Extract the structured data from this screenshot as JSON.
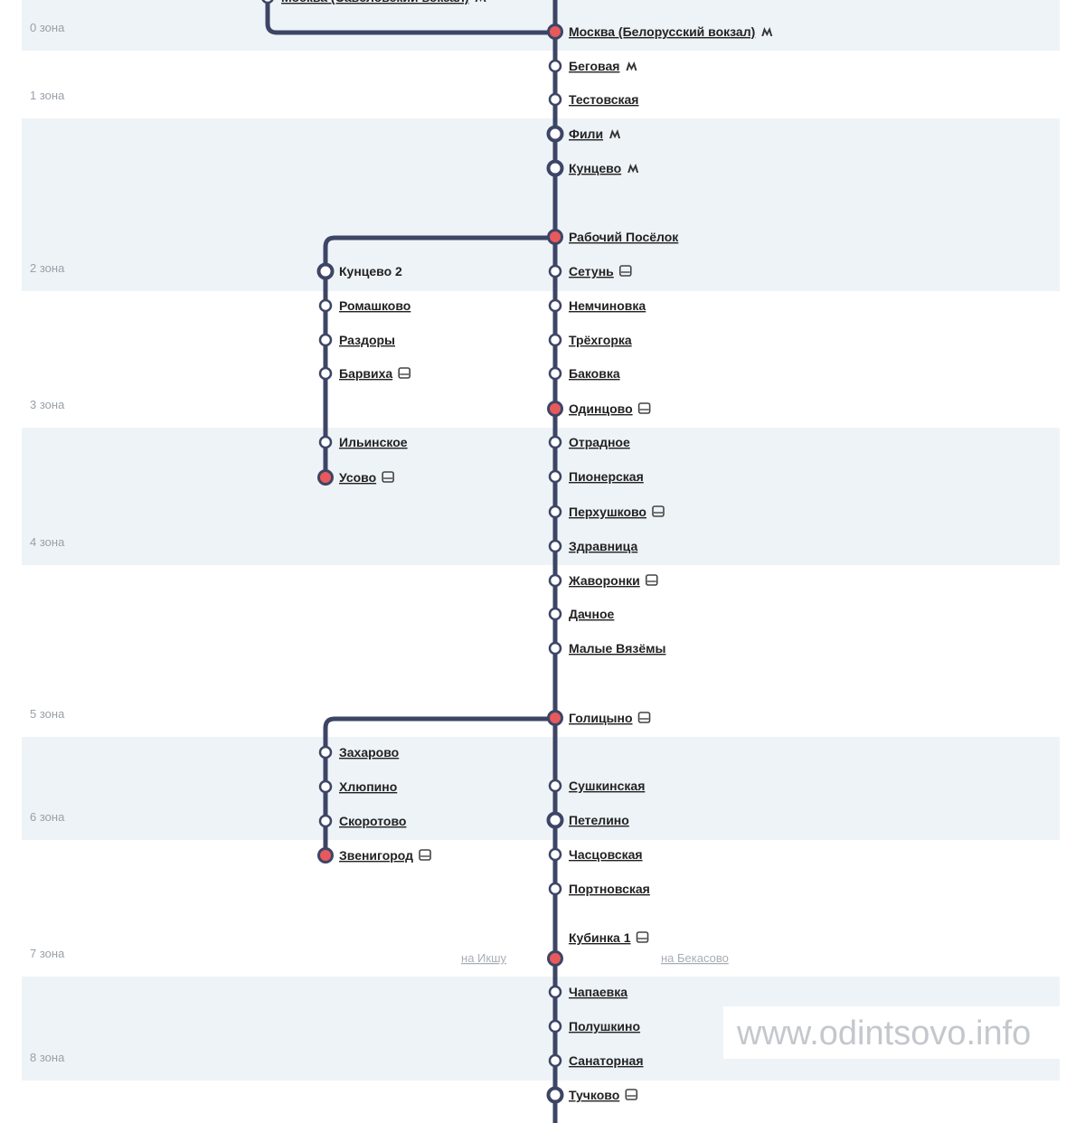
{
  "zones": [
    "0 зона",
    "1 зона",
    "2 зона",
    "3 зона",
    "4 зона",
    "5 зона",
    "6 зона",
    "7 зона",
    "8 зона"
  ],
  "top_station": "Москва (Савёловский вокзал)",
  "main_line": [
    "Москва (Белорусский вокзал)",
    "Беговая",
    "Тестовская",
    "Фили",
    "Кунцево",
    "Рабочий Посёлок",
    "Сетунь",
    "Немчиновка",
    "Трёхгорка",
    "Баковка",
    "Одинцово",
    "Отрадное",
    "Пионерская",
    "Перхушково",
    "Здравница",
    "Жаворонки",
    "Дачное",
    "Малые Вязёмы",
    "Голицыно",
    "Сушкинская",
    "Петелино",
    "Часцовская",
    "Портновская",
    "Кубинка 1",
    "Чапаевка",
    "Полушкино",
    "Санаторная",
    "Тучково"
  ],
  "branch_usovo": [
    "Кунцево 2",
    "Ромашково",
    "Раздоры",
    "Барвиха",
    "Ильинское",
    "Усово"
  ],
  "branch_zvenigorod": [
    "Захарово",
    "Хлюпино",
    "Скоротово",
    "Звенигород"
  ],
  "directions": {
    "left": "на Икшу",
    "right": "на Бекасово"
  },
  "watermark": "www.odintsovo.info"
}
